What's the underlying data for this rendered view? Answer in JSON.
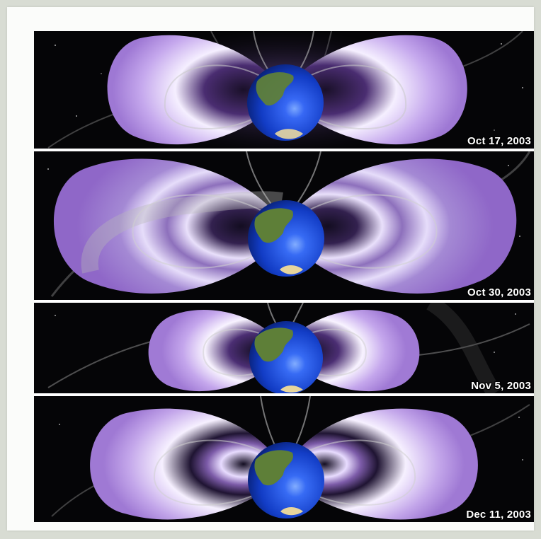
{
  "panels": [
    {
      "date": "Oct 17, 2003"
    },
    {
      "date": "Oct 30, 2003"
    },
    {
      "date": "Nov 5, 2003"
    },
    {
      "date": "Dec 11, 2003"
    }
  ],
  "colors": {
    "background": "#d8dcd3",
    "space": "#050507",
    "belt_light": "#f4ecff",
    "belt_mid": "#b796e4",
    "belt_dark": "#6b4f98",
    "earth_blue": "#1d49d8"
  }
}
